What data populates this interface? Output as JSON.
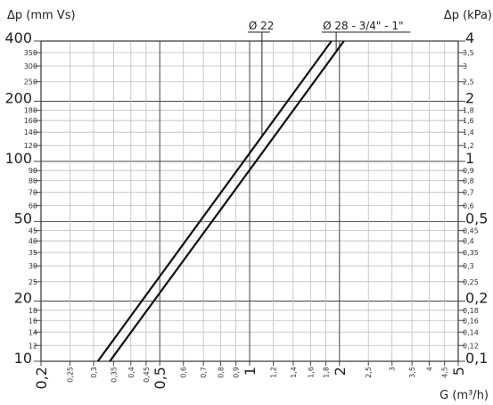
{
  "chart_data": {
    "type": "line",
    "scale": "log-log",
    "title": "",
    "ylabel_left": "Δp (mm Vs)",
    "ylabel_right": "Δp (kPa)",
    "xlabel": "G (m³/h)",
    "xlim": [
      0.2,
      5
    ],
    "ylim": [
      10,
      400
    ],
    "grid": true,
    "y_ticks": [
      {
        "v": 10,
        "left": "10",
        "right": "0,1",
        "major": true
      },
      {
        "v": 12,
        "left": "12",
        "right": "0,12",
        "major": false
      },
      {
        "v": 14,
        "left": "14",
        "right": "0,14",
        "major": false
      },
      {
        "v": 16,
        "left": "16",
        "right": "0,16",
        "major": false
      },
      {
        "v": 18,
        "left": "18",
        "right": "0,18",
        "major": false
      },
      {
        "v": 20,
        "left": "20",
        "right": "0,2",
        "major": true
      },
      {
        "v": 25,
        "left": "25",
        "right": "0,25",
        "major": false
      },
      {
        "v": 30,
        "left": "30",
        "right": "0,3",
        "major": false
      },
      {
        "v": 35,
        "left": "35",
        "right": "0,35",
        "major": false
      },
      {
        "v": 40,
        "left": "40",
        "right": "0,4",
        "major": false
      },
      {
        "v": 45,
        "left": "45",
        "right": "0,45",
        "major": false
      },
      {
        "v": 50,
        "left": "50",
        "right": "0,5",
        "major": true
      },
      {
        "v": 60,
        "left": "60",
        "right": "0,6",
        "major": false
      },
      {
        "v": 70,
        "left": "70",
        "right": "0,7",
        "major": false
      },
      {
        "v": 80,
        "left": "80",
        "right": "0,8",
        "major": false
      },
      {
        "v": 90,
        "left": "90",
        "right": "0,9",
        "major": false
      },
      {
        "v": 100,
        "left": "100",
        "right": "1",
        "major": true
      },
      {
        "v": 120,
        "left": "120",
        "right": "1,2",
        "major": false
      },
      {
        "v": 140,
        "left": "140",
        "right": "1,4",
        "major": false
      },
      {
        "v": 160,
        "left": "160",
        "right": "1,6",
        "major": false
      },
      {
        "v": 180,
        "left": "180",
        "right": "1,8",
        "major": false
      },
      {
        "v": 200,
        "left": "200",
        "right": "2",
        "major": true
      },
      {
        "v": 250,
        "left": "250",
        "right": "2,5",
        "major": false
      },
      {
        "v": 300,
        "left": "300",
        "right": "3",
        "major": false
      },
      {
        "v": 350,
        "left": "350",
        "right": "3,5",
        "major": false
      },
      {
        "v": 400,
        "left": "400",
        "right": "4",
        "major": true
      }
    ],
    "x_ticks": [
      {
        "v": 0.2,
        "label": "0,2",
        "major": true
      },
      {
        "v": 0.25,
        "label": "0,25",
        "major": false
      },
      {
        "v": 0.3,
        "label": "0,3",
        "major": false
      },
      {
        "v": 0.35,
        "label": "0,35",
        "major": false
      },
      {
        "v": 0.4,
        "label": "0,4",
        "major": false
      },
      {
        "v": 0.45,
        "label": "0,45",
        "major": false
      },
      {
        "v": 0.5,
        "label": "0,5",
        "major": true
      },
      {
        "v": 0.6,
        "label": "0,6",
        "major": false
      },
      {
        "v": 0.7,
        "label": "0,7",
        "major": false
      },
      {
        "v": 0.8,
        "label": "0,8",
        "major": false
      },
      {
        "v": 0.9,
        "label": "0,9",
        "major": false
      },
      {
        "v": 1,
        "label": "1",
        "major": true
      },
      {
        "v": 1.2,
        "label": "1,2",
        "major": false
      },
      {
        "v": 1.4,
        "label": "1,4",
        "major": false
      },
      {
        "v": 1.6,
        "label": "1,6",
        "major": false
      },
      {
        "v": 1.8,
        "label": "1,8",
        "major": false
      },
      {
        "v": 2,
        "label": "2",
        "major": true
      },
      {
        "v": 2.5,
        "label": "2,5",
        "major": false
      },
      {
        "v": 3,
        "label": "3",
        "major": false
      },
      {
        "v": 3.5,
        "label": "3,5",
        "major": false
      },
      {
        "v": 4,
        "label": "4",
        "major": false
      },
      {
        "v": 4.5,
        "label": "4,5",
        "major": false
      },
      {
        "v": 5,
        "label": "5",
        "major": true
      }
    ],
    "series": [
      {
        "name": "Ø 22",
        "x": [
          0.31,
          1.88
        ],
        "y": [
          10,
          400
        ],
        "label_at_x": 1.1
      },
      {
        "name": "Ø 28 - 3/4\" - 1\"",
        "x": [
          0.34,
          2.07
        ],
        "y": [
          10,
          400
        ],
        "label_at_x": 1.95
      }
    ]
  }
}
